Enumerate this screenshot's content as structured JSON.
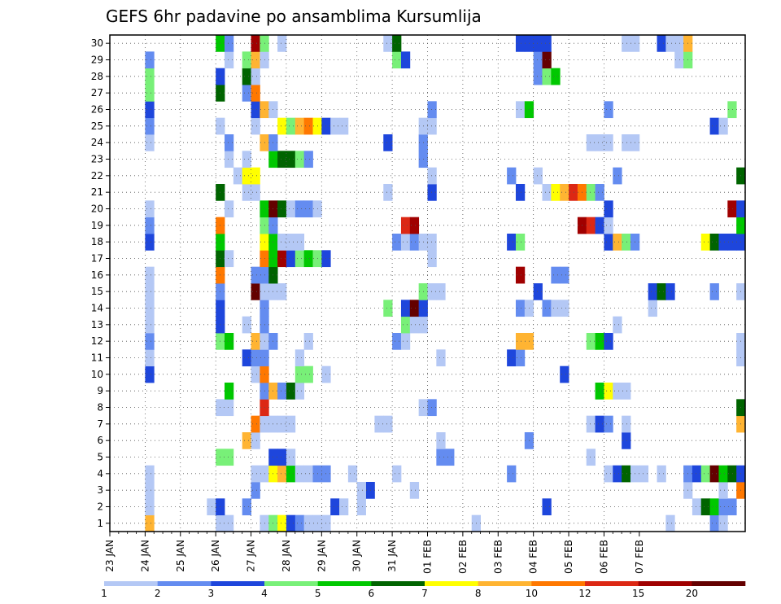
{
  "chart_data": {
    "type": "heatmap",
    "title": "GEFS 6hr padavine po ansamblima Kursumlija",
    "x_start": "23 JAN 00Z",
    "x_step_hours": 6,
    "x_ticks": [
      "23 JAN",
      "24 JAN",
      "25 JAN",
      "26 JAN",
      "27 JAN",
      "28 JAN",
      "29 JAN",
      "30 JAN",
      "31 JAN",
      "01 FEB",
      "02 FEB",
      "03 FEB",
      "04 FEB",
      "05 FEB",
      "06 FEB",
      "07 FEB"
    ],
    "y_ticks": [
      "1",
      "2",
      "3",
      "4",
      "5",
      "6",
      "7",
      "8",
      "9",
      "10",
      "11",
      "12",
      "13",
      "14",
      "15",
      "16",
      "17",
      "18",
      "19",
      "20",
      "21",
      "22",
      "23",
      "24",
      "25",
      "26",
      "27",
      "28",
      "29",
      "30"
    ],
    "ylim": [
      0.5,
      30.5
    ],
    "grid": true,
    "colorbar": {
      "labels": [
        "1",
        "2",
        "3",
        "4",
        "5",
        "6",
        "7",
        "8",
        "10",
        "12",
        "15",
        "20"
      ],
      "colors": [
        "#b4c8f5",
        "#648cf0",
        "#1e46dc",
        "#78f078",
        "#00c800",
        "#006400",
        "#ffff00",
        "#ffb432",
        "#ff7800",
        "#dc2814",
        "#a00000",
        "#640000"
      ]
    },
    "rows": {
      "1": [
        [
          4,
          8
        ],
        [
          12,
          1
        ],
        [
          13,
          1
        ],
        [
          17,
          1
        ],
        [
          18,
          4
        ],
        [
          19,
          7
        ],
        [
          20,
          3
        ],
        [
          21,
          2
        ],
        [
          22,
          1
        ],
        [
          23,
          1
        ],
        [
          24,
          1
        ],
        [
          41,
          1
        ],
        [
          63,
          1
        ],
        [
          68,
          2
        ],
        [
          69,
          1
        ]
      ],
      "2": [
        [
          4,
          1
        ],
        [
          11,
          1
        ],
        [
          12,
          3
        ],
        [
          15,
          2
        ],
        [
          25,
          3
        ],
        [
          26,
          1
        ],
        [
          28,
          1
        ],
        [
          49,
          3
        ],
        [
          66,
          1
        ],
        [
          67,
          6
        ],
        [
          68,
          5
        ],
        [
          69,
          2
        ],
        [
          70,
          2
        ]
      ],
      "3": [
        [
          4,
          1
        ],
        [
          16,
          2
        ],
        [
          29,
          3
        ],
        [
          28,
          1
        ],
        [
          34,
          1
        ],
        [
          65,
          1
        ],
        [
          69,
          1
        ],
        [
          71,
          9
        ]
      ],
      "4": [
        [
          4,
          1
        ],
        [
          16,
          1
        ],
        [
          17,
          1
        ],
        [
          18,
          7
        ],
        [
          19,
          8
        ],
        [
          20,
          5
        ],
        [
          21,
          1
        ],
        [
          22,
          1
        ],
        [
          23,
          2
        ],
        [
          24,
          2
        ],
        [
          27,
          1
        ],
        [
          32,
          1
        ],
        [
          45,
          2
        ],
        [
          56,
          1
        ],
        [
          57,
          3
        ],
        [
          58,
          6
        ],
        [
          59,
          1
        ],
        [
          60,
          1
        ],
        [
          62,
          1
        ],
        [
          65,
          2
        ],
        [
          66,
          3
        ],
        [
          67,
          4
        ],
        [
          68,
          12
        ],
        [
          69,
          5
        ],
        [
          70,
          6
        ],
        [
          71,
          3
        ]
      ],
      "5": [
        [
          12,
          4
        ],
        [
          13,
          4
        ],
        [
          18,
          3
        ],
        [
          19,
          3
        ],
        [
          20,
          1
        ],
        [
          37,
          2
        ],
        [
          38,
          2
        ],
        [
          54,
          1
        ]
      ],
      "6": [
        [
          15,
          8
        ],
        [
          16,
          1
        ],
        [
          37,
          1
        ],
        [
          47,
          2
        ],
        [
          58,
          3
        ]
      ],
      "7": [
        [
          16,
          9
        ],
        [
          17,
          1
        ],
        [
          18,
          1
        ],
        [
          19,
          1
        ],
        [
          20,
          1
        ],
        [
          30,
          1
        ],
        [
          31,
          1
        ],
        [
          54,
          1
        ],
        [
          55,
          3
        ],
        [
          56,
          2
        ],
        [
          58,
          1
        ],
        [
          71,
          8
        ]
      ],
      "8": [
        [
          12,
          1
        ],
        [
          13,
          1
        ],
        [
          17,
          10
        ],
        [
          35,
          1
        ],
        [
          36,
          2
        ],
        [
          71,
          6
        ]
      ],
      "9": [
        [
          13,
          5
        ],
        [
          17,
          2
        ],
        [
          18,
          8
        ],
        [
          19,
          2
        ],
        [
          20,
          6
        ],
        [
          21,
          1
        ],
        [
          55,
          5
        ],
        [
          56,
          7
        ],
        [
          57,
          1
        ],
        [
          58,
          1
        ]
      ],
      "10": [
        [
          4,
          3
        ],
        [
          16,
          1
        ],
        [
          17,
          9
        ],
        [
          21,
          4
        ],
        [
          22,
          4
        ],
        [
          24,
          1
        ],
        [
          51,
          3
        ]
      ],
      "11": [
        [
          4,
          1
        ],
        [
          15,
          3
        ],
        [
          16,
          2
        ],
        [
          17,
          2
        ],
        [
          21,
          1
        ],
        [
          37,
          1
        ],
        [
          45,
          3
        ],
        [
          46,
          2
        ],
        [
          71,
          1
        ]
      ],
      "12": [
        [
          4,
          2
        ],
        [
          12,
          4
        ],
        [
          13,
          5
        ],
        [
          16,
          8
        ],
        [
          17,
          1
        ],
        [
          18,
          2
        ],
        [
          22,
          1
        ],
        [
          32,
          2
        ],
        [
          33,
          1
        ],
        [
          46,
          8
        ],
        [
          47,
          8
        ],
        [
          54,
          4
        ],
        [
          55,
          5
        ],
        [
          56,
          3
        ],
        [
          71,
          1
        ]
      ],
      "13": [
        [
          4,
          1
        ],
        [
          12,
          3
        ],
        [
          15,
          1
        ],
        [
          17,
          2
        ],
        [
          33,
          4
        ],
        [
          34,
          1
        ],
        [
          35,
          1
        ],
        [
          57,
          1
        ]
      ],
      "14": [
        [
          4,
          1
        ],
        [
          12,
          3
        ],
        [
          17,
          2
        ],
        [
          31,
          4
        ],
        [
          33,
          3
        ],
        [
          34,
          12
        ],
        [
          35,
          3
        ],
        [
          46,
          2
        ],
        [
          47,
          1
        ],
        [
          49,
          2
        ],
        [
          50,
          1
        ],
        [
          51,
          1
        ],
        [
          61,
          1
        ]
      ],
      "15": [
        [
          4,
          1
        ],
        [
          12,
          2
        ],
        [
          16,
          12
        ],
        [
          17,
          1
        ],
        [
          18,
          1
        ],
        [
          19,
          1
        ],
        [
          35,
          4
        ],
        [
          36,
          1
        ],
        [
          37,
          1
        ],
        [
          48,
          3
        ],
        [
          61,
          3
        ],
        [
          62,
          6
        ],
        [
          63,
          3
        ],
        [
          68,
          2
        ],
        [
          71,
          1
        ]
      ],
      "16": [
        [
          4,
          1
        ],
        [
          12,
          9
        ],
        [
          16,
          2
        ],
        [
          17,
          2
        ],
        [
          18,
          6
        ],
        [
          46,
          11
        ],
        [
          50,
          2
        ],
        [
          51,
          2
        ]
      ],
      "17": [
        [
          12,
          6
        ],
        [
          13,
          1
        ],
        [
          17,
          9
        ],
        [
          18,
          5
        ],
        [
          19,
          11
        ],
        [
          20,
          3
        ],
        [
          21,
          4
        ],
        [
          22,
          5
        ],
        [
          23,
          4
        ],
        [
          24,
          3
        ],
        [
          36,
          1
        ]
      ],
      "18": [
        [
          4,
          3
        ],
        [
          12,
          5
        ],
        [
          17,
          7
        ],
        [
          18,
          5
        ],
        [
          19,
          1
        ],
        [
          20,
          1
        ],
        [
          21,
          1
        ],
        [
          32,
          2
        ],
        [
          33,
          1
        ],
        [
          34,
          2
        ],
        [
          35,
          1
        ],
        [
          36,
          1
        ],
        [
          45,
          3
        ],
        [
          46,
          4
        ],
        [
          56,
          3
        ],
        [
          57,
          8
        ],
        [
          58,
          4
        ],
        [
          59,
          2
        ],
        [
          67,
          7
        ],
        [
          68,
          6
        ],
        [
          69,
          3
        ],
        [
          70,
          3
        ],
        [
          71,
          3
        ]
      ],
      "19": [
        [
          4,
          2
        ],
        [
          12,
          9
        ],
        [
          17,
          4
        ],
        [
          18,
          2
        ],
        [
          33,
          10
        ],
        [
          34,
          11
        ],
        [
          53,
          11
        ],
        [
          54,
          10
        ],
        [
          55,
          3
        ],
        [
          56,
          1
        ],
        [
          71,
          5
        ]
      ],
      "20": [
        [
          4,
          1
        ],
        [
          13,
          1
        ],
        [
          17,
          5
        ],
        [
          18,
          12
        ],
        [
          19,
          6
        ],
        [
          20,
          1
        ],
        [
          21,
          2
        ],
        [
          22,
          2
        ],
        [
          23,
          1
        ],
        [
          56,
          3
        ],
        [
          70,
          11
        ],
        [
          71,
          3
        ]
      ],
      "21": [
        [
          12,
          6
        ],
        [
          15,
          1
        ],
        [
          16,
          1
        ],
        [
          31,
          1
        ],
        [
          36,
          3
        ],
        [
          46,
          3
        ],
        [
          49,
          1
        ],
        [
          50,
          7
        ],
        [
          51,
          8
        ],
        [
          52,
          10
        ],
        [
          53,
          9
        ],
        [
          54,
          4
        ],
        [
          55,
          2
        ]
      ],
      "22": [
        [
          14,
          1
        ],
        [
          15,
          7
        ],
        [
          16,
          7
        ],
        [
          36,
          1
        ],
        [
          45,
          2
        ],
        [
          48,
          1
        ],
        [
          57,
          2
        ],
        [
          71,
          6
        ]
      ],
      "23": [
        [
          13,
          1
        ],
        [
          15,
          1
        ],
        [
          18,
          5
        ],
        [
          19,
          6
        ],
        [
          20,
          6
        ],
        [
          21,
          4
        ],
        [
          22,
          2
        ],
        [
          35,
          2
        ]
      ],
      "24": [
        [
          4,
          1
        ],
        [
          13,
          2
        ],
        [
          17,
          8
        ],
        [
          18,
          2
        ],
        [
          31,
          3
        ],
        [
          35,
          2
        ],
        [
          54,
          1
        ],
        [
          55,
          1
        ],
        [
          56,
          1
        ],
        [
          58,
          1
        ],
        [
          59,
          1
        ]
      ],
      "25": [
        [
          4,
          2
        ],
        [
          12,
          1
        ],
        [
          16,
          1
        ],
        [
          19,
          7
        ],
        [
          20,
          4
        ],
        [
          21,
          8
        ],
        [
          22,
          9
        ],
        [
          23,
          7
        ],
        [
          24,
          3
        ],
        [
          25,
          1
        ],
        [
          26,
          1
        ],
        [
          35,
          1
        ],
        [
          36,
          1
        ],
        [
          68,
          3
        ],
        [
          69,
          1
        ]
      ],
      "26": [
        [
          4,
          3
        ],
        [
          16,
          3
        ],
        [
          17,
          8
        ],
        [
          18,
          1
        ],
        [
          36,
          2
        ],
        [
          46,
          1
        ],
        [
          47,
          5
        ],
        [
          56,
          2
        ],
        [
          70,
          4
        ]
      ],
      "27": [
        [
          4,
          4
        ],
        [
          12,
          6
        ],
        [
          15,
          2
        ],
        [
          16,
          9
        ]
      ],
      "28": [
        [
          4,
          4
        ],
        [
          12,
          3
        ],
        [
          15,
          6
        ],
        [
          16,
          1
        ],
        [
          48,
          2
        ],
        [
          49,
          4
        ],
        [
          50,
          5
        ]
      ],
      "29": [
        [
          4,
          2
        ],
        [
          13,
          1
        ],
        [
          15,
          4
        ],
        [
          16,
          8
        ],
        [
          17,
          1
        ],
        [
          32,
          4
        ],
        [
          33,
          3
        ],
        [
          48,
          2
        ],
        [
          49,
          12
        ],
        [
          64,
          1
        ],
        [
          65,
          4
        ]
      ],
      "30": [
        [
          12,
          5
        ],
        [
          13,
          2
        ],
        [
          16,
          11
        ],
        [
          17,
          4
        ],
        [
          19,
          1
        ],
        [
          31,
          1
        ],
        [
          32,
          6
        ],
        [
          46,
          3
        ],
        [
          47,
          3
        ],
        [
          48,
          3
        ],
        [
          49,
          3
        ],
        [
          58,
          1
        ],
        [
          59,
          1
        ],
        [
          62,
          3
        ],
        [
          63,
          1
        ],
        [
          64,
          1
        ],
        [
          65,
          8
        ]
      ]
    }
  }
}
